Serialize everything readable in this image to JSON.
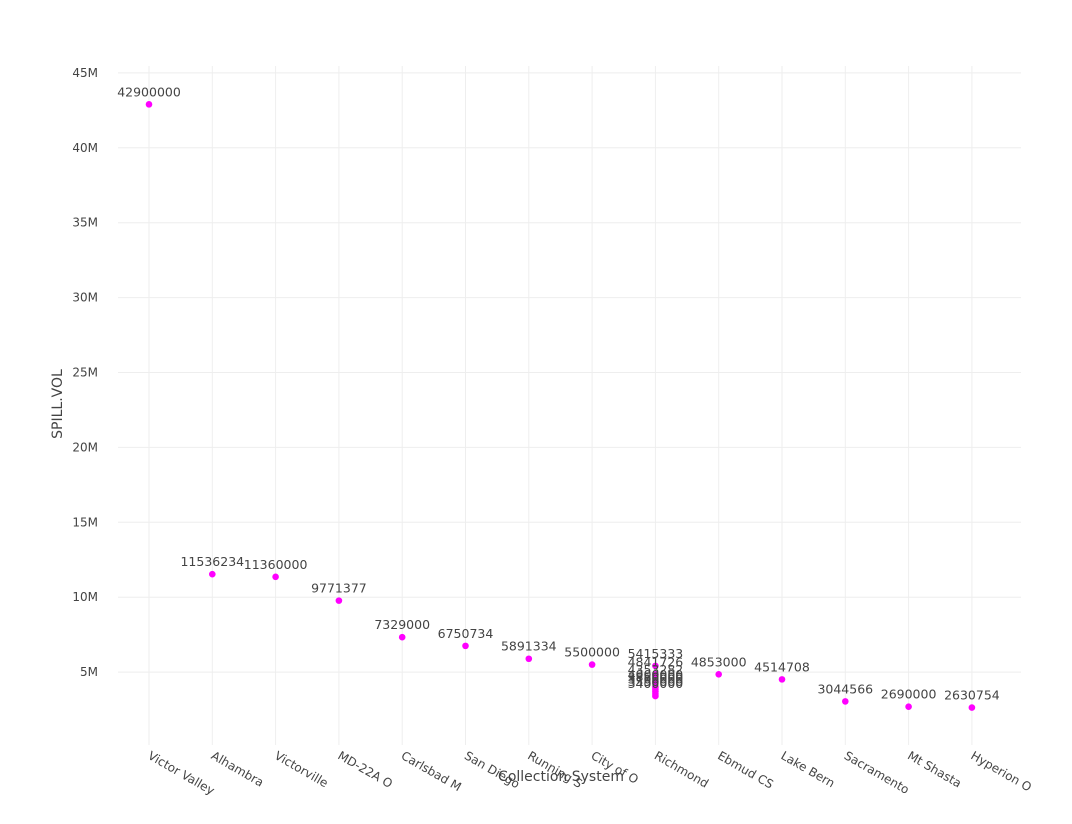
{
  "chart_data": {
    "type": "scatter",
    "xlabel": "Collection System",
    "ylabel": "SPILL.VOL",
    "ylim": [
      0,
      45000000
    ],
    "y_ticks": [
      5000000,
      10000000,
      15000000,
      20000000,
      25000000,
      30000000,
      35000000,
      40000000,
      45000000
    ],
    "y_tick_labels": [
      "5M",
      "10M",
      "15M",
      "20M",
      "25M",
      "30M",
      "35M",
      "40M",
      "45M"
    ],
    "grid": true,
    "color": "#ff00ff",
    "categories": [
      "Victor Valley",
      "Alhambra",
      "Victorville",
      "MD-22A O",
      "Carlsbad M",
      "San Diego",
      "Running S",
      "City of O",
      "Richmond",
      "Ebmud CS",
      "Lake Bern",
      "Sacramento",
      "Mt Shasta",
      "Hyperion O"
    ],
    "points": [
      {
        "x": "Victor Valley",
        "y": 42900000,
        "label": "42900000"
      },
      {
        "x": "Alhambra",
        "y": 11536234,
        "label": "11536234"
      },
      {
        "x": "Victorville",
        "y": 11360000,
        "label": "11360000"
      },
      {
        "x": "MD-22A O",
        "y": 9771377,
        "label": "9771377"
      },
      {
        "x": "Carlsbad M",
        "y": 7329000,
        "label": "7329000"
      },
      {
        "x": "San Diego",
        "y": 6750734,
        "label": "6750734"
      },
      {
        "x": "Running S",
        "y": 5891334,
        "label": "5891334"
      },
      {
        "x": "City of O",
        "y": 5500000,
        "label": "5500000"
      },
      {
        "x": "Richmond",
        "y": 5415333,
        "label": "5415333"
      },
      {
        "x": "Richmond",
        "y": 4841726,
        "label": "4841726"
      },
      {
        "x": "Richmond",
        "y": 4353282,
        "label": "4353282"
      },
      {
        "x": "Richmond",
        "y": 4000000,
        "label": "4000000"
      },
      {
        "x": "Richmond",
        "y": 3850000,
        "label": "3850000"
      },
      {
        "x": "Richmond",
        "y": 3700000,
        "label": "3700000"
      },
      {
        "x": "Richmond",
        "y": 3550000,
        "label": "3550000"
      },
      {
        "x": "Richmond",
        "y": 3400000,
        "label": "3400000"
      },
      {
        "x": "Ebmud CS",
        "y": 4853000,
        "label": "4853000"
      },
      {
        "x": "Lake Bern",
        "y": 4514708,
        "label": "4514708"
      },
      {
        "x": "Sacramento",
        "y": 3044566,
        "label": "3044566"
      },
      {
        "x": "Mt Shasta",
        "y": 2690000,
        "label": "2690000"
      },
      {
        "x": "Hyperion O",
        "y": 2630754,
        "label": "2630754"
      }
    ]
  }
}
